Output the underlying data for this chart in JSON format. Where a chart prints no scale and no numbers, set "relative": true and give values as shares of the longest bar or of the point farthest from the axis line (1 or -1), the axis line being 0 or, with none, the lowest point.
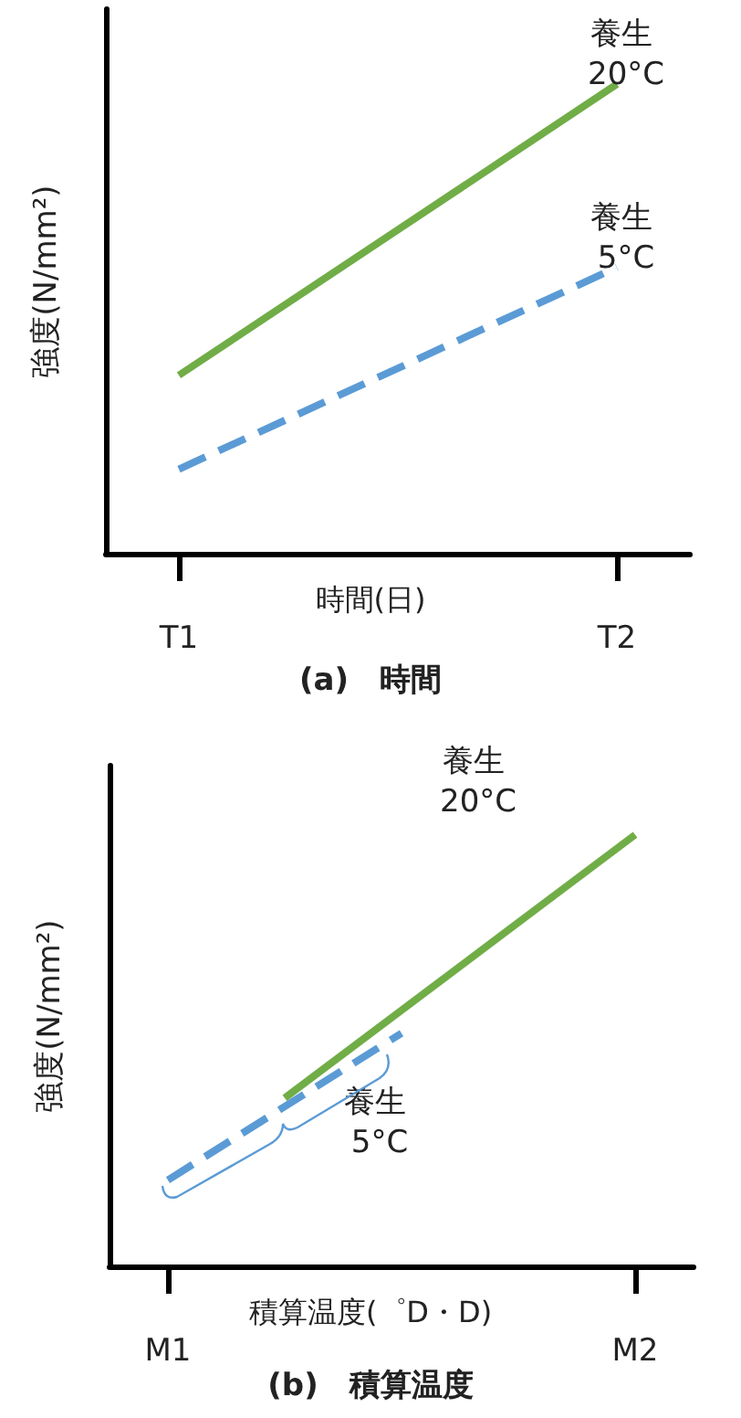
{
  "chart_data": [
    {
      "type": "line",
      "title": "(a)　時間",
      "xlabel": "時間(日)",
      "ylabel": "強度(N/mm²)",
      "relative": true,
      "grid": false,
      "legend": false,
      "marker": "none",
      "categories": [
        null,
        "T1",
        null,
        null,
        null,
        null,
        null,
        "T2",
        null
      ],
      "series": [
        {
          "name": "養生 20°C",
          "color": "#70ad47",
          "line_style": "solid",
          "values": [
            null,
            0.38,
            null,
            null,
            null,
            null,
            null,
            1,
            null
          ]
        },
        {
          "name": "養生 5°C",
          "color": "#5b9bd5",
          "line_style": "dashed",
          "values": [
            null,
            0.18,
            null,
            null,
            null,
            null,
            null,
            0.61,
            null
          ]
        }
      ]
    },
    {
      "type": "line",
      "title": "(b)　積算温度",
      "xlabel": "積算温度(゜D・D)",
      "ylabel": "強度(N/mm²)",
      "relative": true,
      "grid": false,
      "legend": false,
      "marker": "none",
      "categories": [
        null,
        "M1",
        null,
        null,
        null,
        null,
        null,
        null,
        null,
        "M2",
        null
      ],
      "series": [
        {
          "name": "養生 20°C",
          "color": "#70ad47",
          "line_style": "solid",
          "values": [
            null,
            null,
            null,
            0.39,
            null,
            null,
            null,
            null,
            null,
            1,
            null
          ]
        },
        {
          "name": "養生 5°C",
          "color": "#5b9bd5",
          "line_style": "dashed",
          "values": [
            null,
            0.2,
            null,
            null,
            null,
            0.54,
            null,
            null,
            null,
            null,
            null
          ]
        }
      ]
    }
  ]
}
